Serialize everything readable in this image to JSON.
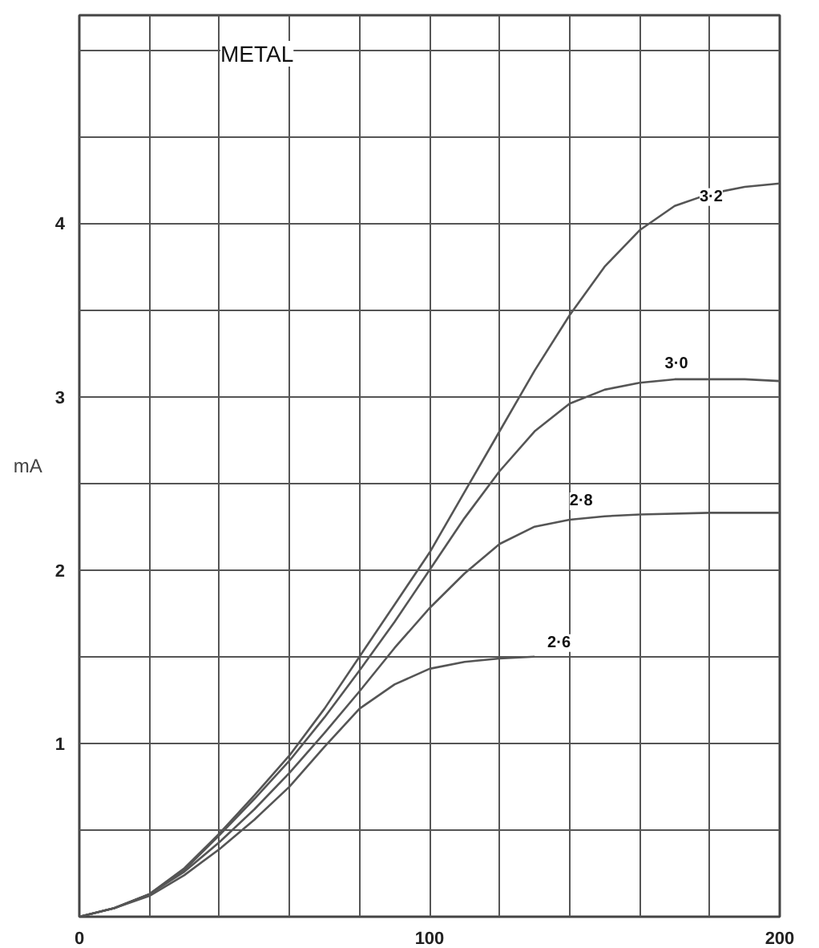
{
  "chart_data": {
    "type": "line",
    "title": "METAL",
    "ylabel": "mA",
    "xlim": [
      0,
      200
    ],
    "ylim": [
      0,
      5.2
    ],
    "xticks": [
      0,
      {
        "value": 20,
        "label": null
      },
      {
        "value": 40,
        "label": null
      },
      {
        "value": 60,
        "label": null
      },
      {
        "value": 80,
        "label": null
      },
      100,
      {
        "value": 120,
        "label": null
      },
      {
        "value": 140,
        "label": null
      },
      {
        "value": 160,
        "label": null
      },
      {
        "value": 180,
        "label": null
      },
      200
    ],
    "yticks": [
      {
        "value": 0,
        "label": null
      },
      {
        "value": 0.5,
        "label": null
      },
      1,
      {
        "value": 1.5,
        "label": null
      },
      2,
      {
        "value": 2.5,
        "label": null
      },
      3,
      {
        "value": 3.5,
        "label": null
      },
      4,
      {
        "value": 4.5,
        "label": null
      },
      {
        "value": 5,
        "label": null
      }
    ],
    "grid": true,
    "marker": "none",
    "line_style": "solid",
    "series": [
      {
        "name": "3·2",
        "color": "#555555",
        "x": [
          0,
          10,
          20,
          30,
          40,
          50,
          60,
          70,
          80,
          90,
          100,
          110,
          120,
          130,
          140,
          150,
          160,
          170,
          180,
          190,
          200
        ],
        "values": [
          0,
          0.05,
          0.13,
          0.28,
          0.48,
          0.7,
          0.93,
          1.2,
          1.5,
          1.8,
          2.1,
          2.45,
          2.8,
          3.15,
          3.47,
          3.75,
          3.96,
          4.1,
          4.17,
          4.21,
          4.23
        ]
      },
      {
        "name": "3·0",
        "color": "#555555",
        "x": [
          0,
          10,
          20,
          30,
          40,
          50,
          60,
          70,
          80,
          90,
          100,
          110,
          120,
          130,
          140,
          150,
          160,
          170,
          180,
          190,
          200
        ],
        "values": [
          0,
          0.05,
          0.13,
          0.27,
          0.47,
          0.68,
          0.9,
          1.15,
          1.42,
          1.7,
          2.0,
          2.3,
          2.57,
          2.8,
          2.96,
          3.04,
          3.08,
          3.1,
          3.1,
          3.1,
          3.09
        ]
      },
      {
        "name": "2·8",
        "color": "#555555",
        "x": [
          0,
          10,
          20,
          30,
          40,
          50,
          60,
          70,
          80,
          90,
          100,
          110,
          120,
          130,
          140,
          150,
          160,
          180,
          200
        ],
        "values": [
          0,
          0.05,
          0.13,
          0.26,
          0.43,
          0.62,
          0.83,
          1.06,
          1.3,
          1.55,
          1.78,
          1.98,
          2.15,
          2.25,
          2.29,
          2.31,
          2.32,
          2.33,
          2.33
        ]
      },
      {
        "name": "2·6",
        "color": "#555555",
        "x": [
          0,
          10,
          20,
          30,
          40,
          50,
          60,
          70,
          80,
          90,
          100,
          110,
          120,
          130
        ],
        "values": [
          0,
          0.05,
          0.12,
          0.24,
          0.39,
          0.56,
          0.75,
          0.98,
          1.2,
          1.34,
          1.43,
          1.47,
          1.49,
          1.5
        ]
      }
    ]
  }
}
